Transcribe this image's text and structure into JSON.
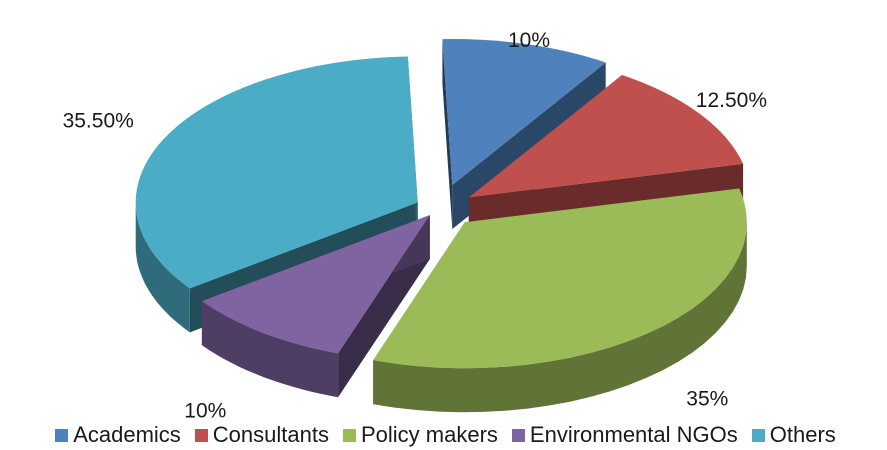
{
  "chart_data": {
    "type": "pie",
    "title": "",
    "three_d": true,
    "exploded": true,
    "legend_position": "bottom",
    "slices": [
      {
        "name": "Academics",
        "value": 10,
        "label": "10%",
        "color": "#4F81BD"
      },
      {
        "name": "Consultants",
        "value": 12.5,
        "label": "12.50%",
        "color": "#C0504D"
      },
      {
        "name": "Policy makers",
        "value": 35,
        "label": "35%",
        "color": "#9BBB59"
      },
      {
        "name": "Environmental NGOs",
        "value": 10,
        "label": "10%",
        "color": "#8064A2"
      },
      {
        "name": "Others",
        "value": 35.5,
        "label": "35.50%",
        "color": "#4BACC6"
      }
    ]
  }
}
